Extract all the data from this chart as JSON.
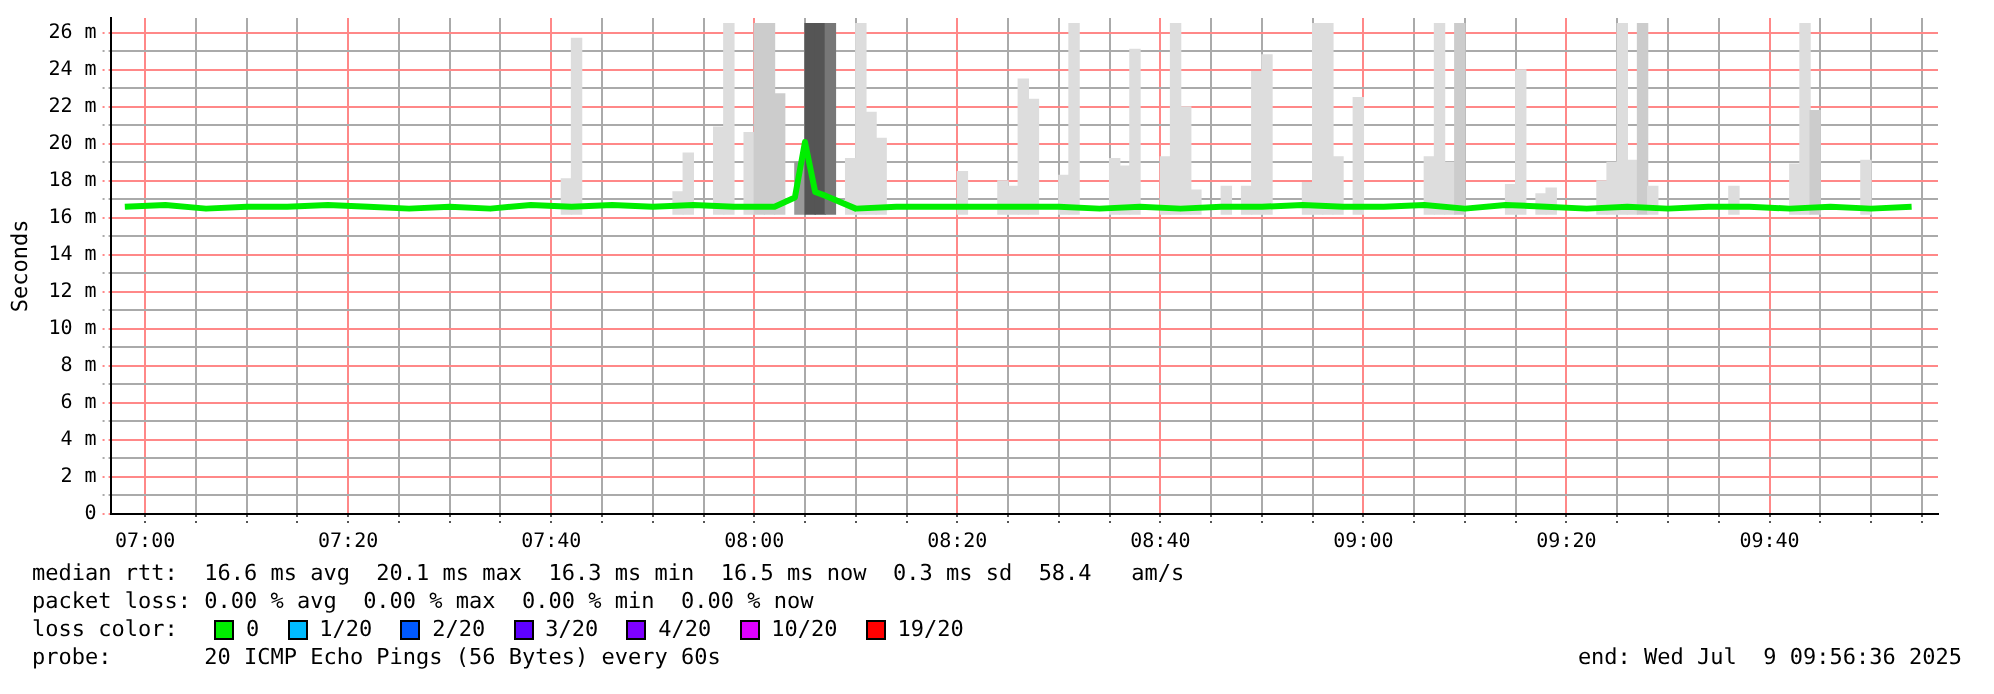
{
  "chart_data": {
    "type": "line",
    "ylabel": "Seconds",
    "legend_title": "loss color:",
    "legend": "bottom",
    "grid": true,
    "marker": "none",
    "line_style": "solid",
    "xlim": [
      6.9433,
      9.9433
    ],
    "ylim": [
      0,
      26.8
    ],
    "yticks": [
      0,
      {
        "value": 1,
        "label": null
      },
      {
        "value": 2,
        "label": "2 m"
      },
      {
        "value": 3,
        "label": null
      },
      {
        "value": 4,
        "label": "4 m"
      },
      {
        "value": 5,
        "label": null
      },
      {
        "value": 6,
        "label": "6 m"
      },
      {
        "value": 7,
        "label": null
      },
      {
        "value": 8,
        "label": "8 m"
      },
      {
        "value": 9,
        "label": null
      },
      {
        "value": 10,
        "label": "10 m"
      },
      {
        "value": 11,
        "label": null
      },
      {
        "value": 12,
        "label": "12 m"
      },
      {
        "value": 13,
        "label": null
      },
      {
        "value": 14,
        "label": "14 m"
      },
      {
        "value": 15,
        "label": null
      },
      {
        "value": 16,
        "label": "16 m"
      },
      {
        "value": 17,
        "label": null
      },
      {
        "value": 18,
        "label": "18 m"
      },
      {
        "value": 19,
        "label": null
      },
      {
        "value": 20,
        "label": "20 m"
      },
      {
        "value": 21,
        "label": null
      },
      {
        "value": 22,
        "label": "22 m"
      },
      {
        "value": 23,
        "label": null
      },
      {
        "value": 24,
        "label": "24 m"
      },
      {
        "value": 25,
        "label": null
      },
      {
        "value": 26,
        "label": "26 m"
      }
    ],
    "xticks": [
      {
        "value": 7,
        "label": "07:00"
      },
      {
        "value": 7.0833,
        "label": null
      },
      {
        "value": 7.1667,
        "label": null
      },
      {
        "value": 7.25,
        "label": null
      },
      {
        "value": 7.3333,
        "label": "07:20"
      },
      {
        "value": 7.4167,
        "label": null
      },
      {
        "value": 7.5,
        "label": null
      },
      {
        "value": 7.5833,
        "label": null
      },
      {
        "value": 7.6667,
        "label": "07:40"
      },
      {
        "value": 7.75,
        "label": null
      },
      {
        "value": 7.8333,
        "label": null
      },
      {
        "value": 7.9167,
        "label": null
      },
      {
        "value": 8,
        "label": "08:00"
      },
      {
        "value": 8.0833,
        "label": null
      },
      {
        "value": 8.1667,
        "label": null
      },
      {
        "value": 8.25,
        "label": null
      },
      {
        "value": 8.3333,
        "label": "08:20"
      },
      {
        "value": 8.4167,
        "label": null
      },
      {
        "value": 8.5,
        "label": null
      },
      {
        "value": 8.5833,
        "label": null
      },
      {
        "value": 8.6667,
        "label": "08:40"
      },
      {
        "value": 8.75,
        "label": null
      },
      {
        "value": 8.8333,
        "label": null
      },
      {
        "value": 8.9167,
        "label": null
      },
      {
        "value": 9,
        "label": "09:00"
      },
      {
        "value": 9.0833,
        "label": null
      },
      {
        "value": 9.1667,
        "label": null
      },
      {
        "value": 9.25,
        "label": null
      },
      {
        "value": 9.3333,
        "label": "09:20"
      },
      {
        "value": 9.4167,
        "label": null
      },
      {
        "value": 9.5,
        "label": null
      },
      {
        "value": 9.5833,
        "label": null
      },
      {
        "value": 9.6667,
        "label": "09:40"
      },
      {
        "value": 9.75,
        "label": null
      },
      {
        "value": 9.8333,
        "label": null
      },
      {
        "value": 9.9167,
        "label": null
      }
    ],
    "series": [
      {
        "type": "bar",
        "x": [
          7.6917,
          7.7083,
          7.875,
          7.8917,
          7.9417,
          7.9583,
          7.9917,
          8.0083,
          8.025,
          8.0417,
          8.075,
          8.0917,
          8.1083,
          8.125,
          8.1583,
          8.175,
          8.1917,
          8.2083,
          8.3417,
          8.4083,
          8.425,
          8.4417,
          8.4583,
          8.5083,
          8.525,
          8.5917,
          8.6083,
          8.625,
          8.675,
          8.6917,
          8.7083,
          8.725,
          8.775,
          8.8083,
          8.825,
          8.8417,
          8.9083,
          8.925,
          8.9417,
          8.9583,
          8.9917,
          9.1083,
          9.125,
          9.1417,
          9.1583,
          9.2417,
          9.2583,
          9.2917,
          9.3083,
          9.3917,
          9.4083,
          9.425,
          9.4417,
          9.4583,
          9.475,
          9.6083,
          9.7083,
          9.725,
          9.7417,
          9.825
        ],
        "base": [
          16.2,
          16.2,
          16.2,
          16.2,
          16.2,
          16.2,
          16.2,
          16.2,
          16.2,
          16.2,
          16.2,
          16.2,
          16.2,
          16.2,
          16.2,
          16.2,
          16.2,
          16.2,
          16.2,
          16.2,
          16.2,
          16.2,
          16.2,
          16.2,
          16.2,
          16.2,
          16.2,
          16.2,
          16.2,
          16.2,
          16.2,
          16.2,
          16.2,
          16.2,
          16.2,
          16.2,
          16.2,
          16.2,
          16.2,
          16.2,
          16.2,
          16.2,
          16.2,
          16.2,
          16.2,
          16.2,
          16.2,
          16.2,
          16.2,
          16.2,
          16.2,
          16.2,
          16.2,
          16.2,
          16.2,
          16.2,
          16.2,
          16.2,
          16.2,
          16.2
        ],
        "values": [
          1.9,
          9.5,
          1.2,
          3.3,
          4.7,
          10.3,
          4.4,
          10.3,
          10.3,
          6.5,
          2.8,
          10.3,
          10.3,
          10.3,
          3,
          10.3,
          5.5,
          4.1,
          2.3,
          1.8,
          1.5,
          7.3,
          6.2,
          2.1,
          10.3,
          3,
          2.6,
          8.9,
          3.1,
          10.3,
          5.8,
          1.3,
          1.5,
          1.5,
          7.7,
          8.6,
          1.7,
          10.3,
          10.3,
          3.1,
          6.3,
          3.1,
          10.3,
          2.8,
          10.3,
          1.6,
          7.8,
          1.1,
          1.4,
          1.8,
          2.8,
          10.3,
          2.9,
          10.3,
          1.5,
          1.5,
          2.7,
          10.3,
          5.6,
          2.9
        ],
        "colors": [
          "#dddddd",
          "#dddddd",
          "#dddddd",
          "#dddddd",
          "#dddddd",
          "#dddddd",
          "#dddddd",
          "#cccccc",
          "#cccccc",
          "#cccccc",
          "#999999",
          "#555555",
          "#555555",
          "#777777",
          "#dddddd",
          "#dddddd",
          "#dddddd",
          "#dddddd",
          "#dddddd",
          "#dddddd",
          "#dddddd",
          "#dddddd",
          "#dddddd",
          "#dddddd",
          "#dddddd",
          "#dddddd",
          "#dddddd",
          "#dddddd",
          "#dddddd",
          "#dddddd",
          "#dddddd",
          "#dddddd",
          "#dddddd",
          "#dddddd",
          "#dddddd",
          "#dddddd",
          "#dddddd",
          "#dddddd",
          "#dddddd",
          "#dddddd",
          "#dddddd",
          "#dddddd",
          "#dddddd",
          "#dddddd",
          "#cccccc",
          "#dddddd",
          "#dddddd",
          "#dddddd",
          "#dddddd",
          "#dddddd",
          "#dddddd",
          "#dddddd",
          "#dddddd",
          "#cccccc",
          "#dddddd",
          "#dddddd",
          "#dddddd",
          "#dddddd",
          "#cccccc",
          "#dddddd"
        ]
      },
      {
        "name": "0",
        "color": "#00ee00",
        "x": [
          6.9667,
          7.0333,
          7.1,
          7.1667,
          7.2333,
          7.3,
          7.3667,
          7.4333,
          7.5,
          7.5667,
          7.6333,
          7.7,
          7.7667,
          7.8333,
          7.9,
          7.9667,
          8.0333,
          8.0667,
          8.0833,
          8.1,
          8.1167,
          8.1667,
          8.2333,
          8.3,
          8.3667,
          8.4333,
          8.5,
          8.5667,
          8.6333,
          8.7,
          8.7667,
          8.8333,
          8.9,
          8.9667,
          9.0333,
          9.1,
          9.1667,
          9.2333,
          9.3,
          9.3667,
          9.4333,
          9.5,
          9.5667,
          9.6333,
          9.7,
          9.7667,
          9.8333,
          9.9
        ],
        "values": [
          16.6,
          16.7,
          16.5,
          16.6,
          16.6,
          16.7,
          16.6,
          16.5,
          16.6,
          16.5,
          16.7,
          16.6,
          16.7,
          16.6,
          16.7,
          16.6,
          16.6,
          17.1,
          20.1,
          17.4,
          17.2,
          16.5,
          16.6,
          16.6,
          16.6,
          16.6,
          16.6,
          16.5,
          16.6,
          16.5,
          16.6,
          16.6,
          16.7,
          16.6,
          16.6,
          16.7,
          16.5,
          16.7,
          16.6,
          16.5,
          16.6,
          16.5,
          16.6,
          16.6,
          16.5,
          16.6,
          16.5,
          16.6
        ]
      },
      {
        "name": "1/20",
        "color": "#00bbff"
      },
      {
        "name": "2/20",
        "color": "#0059ff"
      },
      {
        "name": "3/20",
        "color": "#5e00ff"
      },
      {
        "name": "4/20",
        "color": "#7e00ff"
      },
      {
        "name": "10/20",
        "color": "#dd00ff"
      },
      {
        "name": "19/20",
        "color": "#ff0000"
      }
    ],
    "annotations": [
      "median rtt:  16.6 ms avg  20.1 ms max  16.3 ms min  16.5 ms now  0.3 ms sd  58.4   am/s",
      "packet loss: 0.00 % avg  0.00 % max  0.00 % min  0.00 % now",
      "probe:       20 ICMP Echo Pings (56 Bytes) every 60s",
      "end: Wed Jul  9 09:56:36 2025"
    ]
  }
}
